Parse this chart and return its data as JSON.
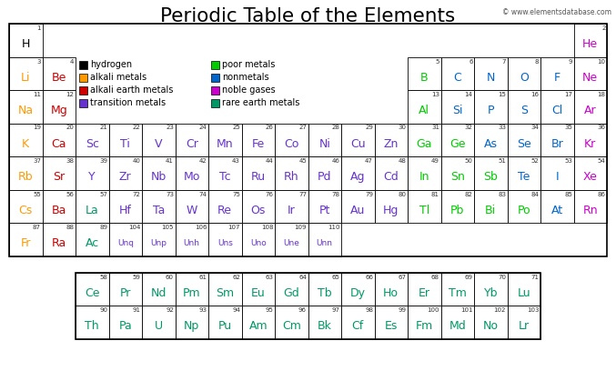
{
  "title": "Periodic Table of the Elements",
  "copyright": "© www.elementsdatabase.com",
  "background_color": "#ffffff",
  "colors": {
    "hydrogen": "#000000",
    "alkali_metals": "#ff9900",
    "alkali_earth_metals": "#cc0000",
    "transition_metals": "#6633cc",
    "poor_metals": "#00cc00",
    "nonmetals": "#0066cc",
    "noble_gases": "#cc00cc",
    "rare_earth_metals": "#009966",
    "default": "#000000"
  },
  "elements": [
    {
      "symbol": "H",
      "number": 1,
      "col": 0,
      "row": 0,
      "category": "hydrogen"
    },
    {
      "symbol": "He",
      "number": 2,
      "col": 17,
      "row": 0,
      "category": "noble_gases"
    },
    {
      "symbol": "Li",
      "number": 3,
      "col": 0,
      "row": 1,
      "category": "alkali_metals"
    },
    {
      "symbol": "Be",
      "number": 4,
      "col": 1,
      "row": 1,
      "category": "alkali_earth_metals"
    },
    {
      "symbol": "B",
      "number": 5,
      "col": 12,
      "row": 1,
      "category": "poor_metals"
    },
    {
      "symbol": "C",
      "number": 6,
      "col": 13,
      "row": 1,
      "category": "nonmetals"
    },
    {
      "symbol": "N",
      "number": 7,
      "col": 14,
      "row": 1,
      "category": "nonmetals"
    },
    {
      "symbol": "O",
      "number": 8,
      "col": 15,
      "row": 1,
      "category": "nonmetals"
    },
    {
      "symbol": "F",
      "number": 9,
      "col": 16,
      "row": 1,
      "category": "nonmetals"
    },
    {
      "symbol": "Ne",
      "number": 10,
      "col": 17,
      "row": 1,
      "category": "noble_gases"
    },
    {
      "symbol": "Na",
      "number": 11,
      "col": 0,
      "row": 2,
      "category": "alkali_metals"
    },
    {
      "symbol": "Mg",
      "number": 12,
      "col": 1,
      "row": 2,
      "category": "alkali_earth_metals"
    },
    {
      "symbol": "Al",
      "number": 13,
      "col": 12,
      "row": 2,
      "category": "poor_metals"
    },
    {
      "symbol": "Si",
      "number": 14,
      "col": 13,
      "row": 2,
      "category": "nonmetals"
    },
    {
      "symbol": "P",
      "number": 15,
      "col": 14,
      "row": 2,
      "category": "nonmetals"
    },
    {
      "symbol": "S",
      "number": 16,
      "col": 15,
      "row": 2,
      "category": "nonmetals"
    },
    {
      "symbol": "Cl",
      "number": 17,
      "col": 16,
      "row": 2,
      "category": "nonmetals"
    },
    {
      "symbol": "Ar",
      "number": 18,
      "col": 17,
      "row": 2,
      "category": "noble_gases"
    },
    {
      "symbol": "K",
      "number": 19,
      "col": 0,
      "row": 3,
      "category": "alkali_metals"
    },
    {
      "symbol": "Ca",
      "number": 20,
      "col": 1,
      "row": 3,
      "category": "alkali_earth_metals"
    },
    {
      "symbol": "Sc",
      "number": 21,
      "col": 2,
      "row": 3,
      "category": "transition_metals"
    },
    {
      "symbol": "Ti",
      "number": 22,
      "col": 3,
      "row": 3,
      "category": "transition_metals"
    },
    {
      "symbol": "V",
      "number": 23,
      "col": 4,
      "row": 3,
      "category": "transition_metals"
    },
    {
      "symbol": "Cr",
      "number": 24,
      "col": 5,
      "row": 3,
      "category": "transition_metals"
    },
    {
      "symbol": "Mn",
      "number": 25,
      "col": 6,
      "row": 3,
      "category": "transition_metals"
    },
    {
      "symbol": "Fe",
      "number": 26,
      "col": 7,
      "row": 3,
      "category": "transition_metals"
    },
    {
      "symbol": "Co",
      "number": 27,
      "col": 8,
      "row": 3,
      "category": "transition_metals"
    },
    {
      "symbol": "Ni",
      "number": 28,
      "col": 9,
      "row": 3,
      "category": "transition_metals"
    },
    {
      "symbol": "Cu",
      "number": 29,
      "col": 10,
      "row": 3,
      "category": "transition_metals"
    },
    {
      "symbol": "Zn",
      "number": 30,
      "col": 11,
      "row": 3,
      "category": "transition_metals"
    },
    {
      "symbol": "Ga",
      "number": 31,
      "col": 12,
      "row": 3,
      "category": "poor_metals"
    },
    {
      "symbol": "Ge",
      "number": 32,
      "col": 13,
      "row": 3,
      "category": "poor_metals"
    },
    {
      "symbol": "As",
      "number": 33,
      "col": 14,
      "row": 3,
      "category": "nonmetals"
    },
    {
      "symbol": "Se",
      "number": 34,
      "col": 15,
      "row": 3,
      "category": "nonmetals"
    },
    {
      "symbol": "Br",
      "number": 35,
      "col": 16,
      "row": 3,
      "category": "nonmetals"
    },
    {
      "symbol": "Kr",
      "number": 36,
      "col": 17,
      "row": 3,
      "category": "noble_gases"
    },
    {
      "symbol": "Rb",
      "number": 37,
      "col": 0,
      "row": 4,
      "category": "alkali_metals"
    },
    {
      "symbol": "Sr",
      "number": 38,
      "col": 1,
      "row": 4,
      "category": "alkali_earth_metals"
    },
    {
      "symbol": "Y",
      "number": 39,
      "col": 2,
      "row": 4,
      "category": "transition_metals"
    },
    {
      "symbol": "Zr",
      "number": 40,
      "col": 3,
      "row": 4,
      "category": "transition_metals"
    },
    {
      "symbol": "Nb",
      "number": 41,
      "col": 4,
      "row": 4,
      "category": "transition_metals"
    },
    {
      "symbol": "Mo",
      "number": 42,
      "col": 5,
      "row": 4,
      "category": "transition_metals"
    },
    {
      "symbol": "Tc",
      "number": 43,
      "col": 6,
      "row": 4,
      "category": "transition_metals"
    },
    {
      "symbol": "Ru",
      "number": 44,
      "col": 7,
      "row": 4,
      "category": "transition_metals"
    },
    {
      "symbol": "Rh",
      "number": 45,
      "col": 8,
      "row": 4,
      "category": "transition_metals"
    },
    {
      "symbol": "Pd",
      "number": 46,
      "col": 9,
      "row": 4,
      "category": "transition_metals"
    },
    {
      "symbol": "Ag",
      "number": 47,
      "col": 10,
      "row": 4,
      "category": "transition_metals"
    },
    {
      "symbol": "Cd",
      "number": 48,
      "col": 11,
      "row": 4,
      "category": "transition_metals"
    },
    {
      "symbol": "In",
      "number": 49,
      "col": 12,
      "row": 4,
      "category": "poor_metals"
    },
    {
      "symbol": "Sn",
      "number": 50,
      "col": 13,
      "row": 4,
      "category": "poor_metals"
    },
    {
      "symbol": "Sb",
      "number": 51,
      "col": 14,
      "row": 4,
      "category": "poor_metals"
    },
    {
      "symbol": "Te",
      "number": 52,
      "col": 15,
      "row": 4,
      "category": "nonmetals"
    },
    {
      "symbol": "I",
      "number": 53,
      "col": 16,
      "row": 4,
      "category": "nonmetals"
    },
    {
      "symbol": "Xe",
      "number": 54,
      "col": 17,
      "row": 4,
      "category": "noble_gases"
    },
    {
      "symbol": "Cs",
      "number": 55,
      "col": 0,
      "row": 5,
      "category": "alkali_metals"
    },
    {
      "symbol": "Ba",
      "number": 56,
      "col": 1,
      "row": 5,
      "category": "alkali_earth_metals"
    },
    {
      "symbol": "La",
      "number": 57,
      "col": 2,
      "row": 5,
      "category": "rare_earth_metals"
    },
    {
      "symbol": "Hf",
      "number": 72,
      "col": 3,
      "row": 5,
      "category": "transition_metals"
    },
    {
      "symbol": "Ta",
      "number": 73,
      "col": 4,
      "row": 5,
      "category": "transition_metals"
    },
    {
      "symbol": "W",
      "number": 74,
      "col": 5,
      "row": 5,
      "category": "transition_metals"
    },
    {
      "symbol": "Re",
      "number": 75,
      "col": 6,
      "row": 5,
      "category": "transition_metals"
    },
    {
      "symbol": "Os",
      "number": 76,
      "col": 7,
      "row": 5,
      "category": "transition_metals"
    },
    {
      "symbol": "Ir",
      "number": 77,
      "col": 8,
      "row": 5,
      "category": "transition_metals"
    },
    {
      "symbol": "Pt",
      "number": 78,
      "col": 9,
      "row": 5,
      "category": "transition_metals"
    },
    {
      "symbol": "Au",
      "number": 79,
      "col": 10,
      "row": 5,
      "category": "transition_metals"
    },
    {
      "symbol": "Hg",
      "number": 80,
      "col": 11,
      "row": 5,
      "category": "transition_metals"
    },
    {
      "symbol": "Tl",
      "number": 81,
      "col": 12,
      "row": 5,
      "category": "poor_metals"
    },
    {
      "symbol": "Pb",
      "number": 82,
      "col": 13,
      "row": 5,
      "category": "poor_metals"
    },
    {
      "symbol": "Bi",
      "number": 83,
      "col": 14,
      "row": 5,
      "category": "poor_metals"
    },
    {
      "symbol": "Po",
      "number": 84,
      "col": 15,
      "row": 5,
      "category": "poor_metals"
    },
    {
      "symbol": "At",
      "number": 85,
      "col": 16,
      "row": 5,
      "category": "nonmetals"
    },
    {
      "symbol": "Rn",
      "number": 86,
      "col": 17,
      "row": 5,
      "category": "noble_gases"
    },
    {
      "symbol": "Fr",
      "number": 87,
      "col": 0,
      "row": 6,
      "category": "alkali_metals"
    },
    {
      "symbol": "Ra",
      "number": 88,
      "col": 1,
      "row": 6,
      "category": "alkali_earth_metals"
    },
    {
      "symbol": "Ac",
      "number": 89,
      "col": 2,
      "row": 6,
      "category": "rare_earth_metals"
    },
    {
      "symbol": "Unq",
      "number": 104,
      "col": 3,
      "row": 6,
      "category": "transition_metals"
    },
    {
      "symbol": "Unp",
      "number": 105,
      "col": 4,
      "row": 6,
      "category": "transition_metals"
    },
    {
      "symbol": "Unh",
      "number": 106,
      "col": 5,
      "row": 6,
      "category": "transition_metals"
    },
    {
      "symbol": "Uns",
      "number": 107,
      "col": 6,
      "row": 6,
      "category": "transition_metals"
    },
    {
      "symbol": "Uno",
      "number": 108,
      "col": 7,
      "row": 6,
      "category": "transition_metals"
    },
    {
      "symbol": "Une",
      "number": 109,
      "col": 8,
      "row": 6,
      "category": "transition_metals"
    },
    {
      "symbol": "Unn",
      "number": 110,
      "col": 9,
      "row": 6,
      "category": "transition_metals"
    },
    {
      "symbol": "Ce",
      "number": 58,
      "col": 2,
      "row": 8,
      "category": "rare_earth_metals"
    },
    {
      "symbol": "Pr",
      "number": 59,
      "col": 3,
      "row": 8,
      "category": "rare_earth_metals"
    },
    {
      "symbol": "Nd",
      "number": 60,
      "col": 4,
      "row": 8,
      "category": "rare_earth_metals"
    },
    {
      "symbol": "Pm",
      "number": 61,
      "col": 5,
      "row": 8,
      "category": "rare_earth_metals"
    },
    {
      "symbol": "Sm",
      "number": 62,
      "col": 6,
      "row": 8,
      "category": "rare_earth_metals"
    },
    {
      "symbol": "Eu",
      "number": 63,
      "col": 7,
      "row": 8,
      "category": "rare_earth_metals"
    },
    {
      "symbol": "Gd",
      "number": 64,
      "col": 8,
      "row": 8,
      "category": "rare_earth_metals"
    },
    {
      "symbol": "Tb",
      "number": 65,
      "col": 9,
      "row": 8,
      "category": "rare_earth_metals"
    },
    {
      "symbol": "Dy",
      "number": 66,
      "col": 10,
      "row": 8,
      "category": "rare_earth_metals"
    },
    {
      "symbol": "Ho",
      "number": 67,
      "col": 11,
      "row": 8,
      "category": "rare_earth_metals"
    },
    {
      "symbol": "Er",
      "number": 68,
      "col": 12,
      "row": 8,
      "category": "rare_earth_metals"
    },
    {
      "symbol": "Tm",
      "number": 69,
      "col": 13,
      "row": 8,
      "category": "rare_earth_metals"
    },
    {
      "symbol": "Yb",
      "number": 70,
      "col": 14,
      "row": 8,
      "category": "rare_earth_metals"
    },
    {
      "symbol": "Lu",
      "number": 71,
      "col": 15,
      "row": 8,
      "category": "rare_earth_metals"
    },
    {
      "symbol": "Th",
      "number": 90,
      "col": 2,
      "row": 9,
      "category": "rare_earth_metals"
    },
    {
      "symbol": "Pa",
      "number": 91,
      "col": 3,
      "row": 9,
      "category": "rare_earth_metals"
    },
    {
      "symbol": "U",
      "number": 92,
      "col": 4,
      "row": 9,
      "category": "rare_earth_metals"
    },
    {
      "symbol": "Np",
      "number": 93,
      "col": 5,
      "row": 9,
      "category": "rare_earth_metals"
    },
    {
      "symbol": "Pu",
      "number": 94,
      "col": 6,
      "row": 9,
      "category": "rare_earth_metals"
    },
    {
      "symbol": "Am",
      "number": 95,
      "col": 7,
      "row": 9,
      "category": "rare_earth_metals"
    },
    {
      "symbol": "Cm",
      "number": 96,
      "col": 8,
      "row": 9,
      "category": "rare_earth_metals"
    },
    {
      "symbol": "Bk",
      "number": 97,
      "col": 9,
      "row": 9,
      "category": "rare_earth_metals"
    },
    {
      "symbol": "Cf",
      "number": 98,
      "col": 10,
      "row": 9,
      "category": "rare_earth_metals"
    },
    {
      "symbol": "Es",
      "number": 99,
      "col": 11,
      "row": 9,
      "category": "rare_earth_metals"
    },
    {
      "symbol": "Fm",
      "number": 100,
      "col": 12,
      "row": 9,
      "category": "rare_earth_metals"
    },
    {
      "symbol": "Md",
      "number": 101,
      "col": 13,
      "row": 9,
      "category": "rare_earth_metals"
    },
    {
      "symbol": "No",
      "number": 102,
      "col": 14,
      "row": 9,
      "category": "rare_earth_metals"
    },
    {
      "symbol": "Lr",
      "number": 103,
      "col": 15,
      "row": 9,
      "category": "rare_earth_metals"
    }
  ],
  "legend_items": [
    {
      "label": "hydrogen",
      "color": "#000000",
      "col": 0,
      "row": 0
    },
    {
      "label": "alkali metals",
      "color": "#ff9900",
      "col": 0,
      "row": 1
    },
    {
      "label": "alkali earth metals",
      "color": "#cc0000",
      "col": 0,
      "row": 2
    },
    {
      "label": "transition metals",
      "color": "#6633cc",
      "col": 0,
      "row": 3
    },
    {
      "label": "poor metals",
      "color": "#00cc00",
      "col": 1,
      "row": 0
    },
    {
      "label": "nonmetals",
      "color": "#0066cc",
      "col": 1,
      "row": 1
    },
    {
      "label": "noble gases",
      "color": "#cc00cc",
      "col": 1,
      "row": 2
    },
    {
      "label": "rare earth metals",
      "color": "#009966",
      "col": 1,
      "row": 3
    }
  ]
}
